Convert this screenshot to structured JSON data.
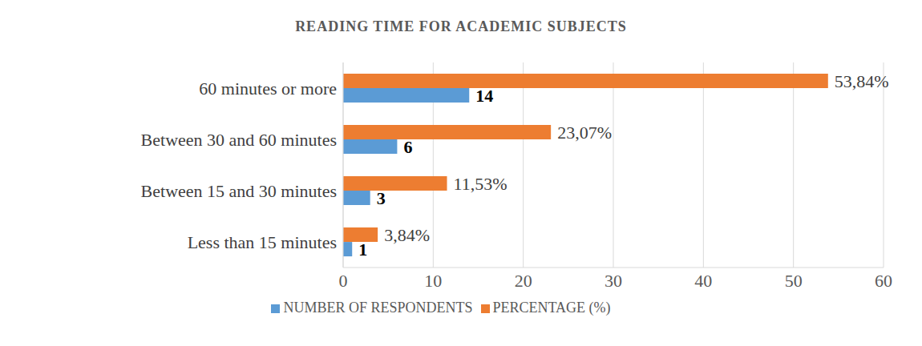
{
  "chart_data": {
    "type": "bar",
    "title": "READING TIME FOR ACADEMIC SUBJECTS",
    "orientation": "horizontal",
    "categories": [
      "60 minutes or more",
      "Between 30 and 60 minutes",
      "Between 15 and 30 minutes",
      "Less than 15 minutes"
    ],
    "series": [
      {
        "name": "PERCENTAGE (%)",
        "color": "#ED7D31",
        "values": [
          53.84,
          23.07,
          11.53,
          3.84
        ],
        "value_labels": [
          "53,84%",
          "23,07%",
          "11,53%",
          "3,84%"
        ]
      },
      {
        "name": "NUMBER OF RESPONDENTS",
        "color": "#5B9BD5",
        "values": [
          14,
          6,
          3,
          1
        ]
      }
    ],
    "xlim": [
      0,
      60
    ],
    "xticks": [
      0,
      10,
      20,
      30,
      40,
      50,
      60
    ],
    "grid": true,
    "legend": "bottom",
    "data_labels": true
  }
}
